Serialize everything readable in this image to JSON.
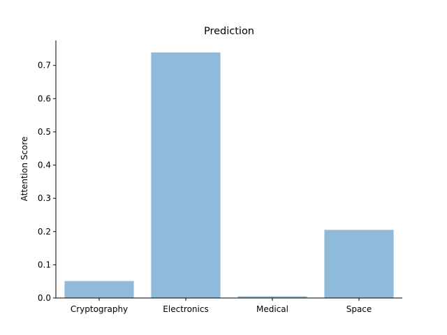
{
  "chart_data": {
    "type": "bar",
    "title": "Prediction",
    "xlabel": "",
    "ylabel": "Attention Score",
    "categories": [
      "Cryptography",
      "Electronics",
      "Medical",
      "Space"
    ],
    "values": [
      0.051,
      0.739,
      0.005,
      0.205
    ],
    "ylim": [
      0,
      0.775
    ],
    "yticks": [
      0.0,
      0.1,
      0.2,
      0.3,
      0.4,
      0.5,
      0.6,
      0.7
    ],
    "ytick_labels": [
      "0.0",
      "0.1",
      "0.2",
      "0.3",
      "0.4",
      "0.5",
      "0.6",
      "0.7"
    ],
    "bar_color": "#8fbad9",
    "grid": false,
    "legend": "none",
    "spines": [
      "left",
      "bottom"
    ]
  }
}
